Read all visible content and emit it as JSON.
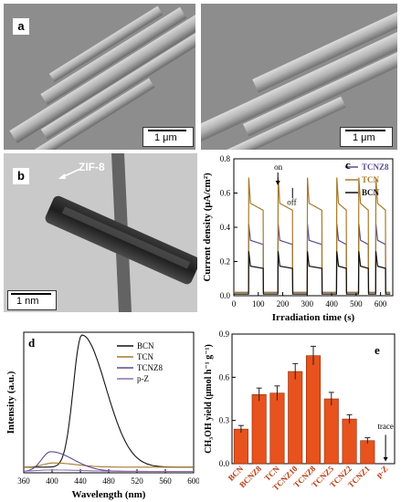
{
  "panels": {
    "a": {
      "letter": "a",
      "scale_left": "1 μm",
      "scale_right": "1 μm"
    },
    "b": {
      "letter": "b",
      "label": "ZIF-8",
      "scale": "1 nm"
    },
    "c": {
      "letter": "c",
      "annot_on": "on",
      "annot_off": "off"
    },
    "d": {
      "letter": "d"
    },
    "e": {
      "letter": "e",
      "annot_trace": "trace"
    }
  },
  "colors": {
    "BCN": "#111111",
    "TCN": "#a67a2a",
    "TCNZ8": "#5b4a92",
    "pZ": "#8e70b8",
    "bar": "#e8521d"
  },
  "chart_data": [
    {
      "id": "c",
      "type": "line",
      "xlabel": "Irradiation time (s)",
      "ylabel": "Current density (μA/cm²)",
      "xlim": [
        0,
        650
      ],
      "ylim": [
        0,
        0.8
      ],
      "xticks": [
        0,
        100,
        200,
        300,
        400,
        500,
        600
      ],
      "yticks": [
        0.0,
        0.2,
        0.4,
        0.6,
        0.8
      ],
      "ytick_labels": [
        "0.0",
        "0.2",
        "0.4",
        "0.6",
        "0.8"
      ],
      "legend_position": "top-right",
      "on_times": [
        60,
        180,
        300,
        420,
        510,
        580
      ],
      "off_times": [
        120,
        240,
        360,
        460,
        550,
        620
      ],
      "series": [
        {
          "name": "TCNZ8",
          "color_key": "TCNZ8",
          "peak": 0.42,
          "steady": 0.3,
          "dark": 0.02
        },
        {
          "name": "TCN",
          "color_key": "TCN",
          "peak": 0.69,
          "steady": 0.5,
          "dark": 0.02
        },
        {
          "name": "BCN",
          "color_key": "BCN",
          "peak": 0.26,
          "steady": 0.16,
          "dark": 0.01
        }
      ]
    },
    {
      "id": "d",
      "type": "line",
      "xlabel": "Wavelength (nm)",
      "ylabel": "Intensity (a.u.)",
      "xlim": [
        360,
        600
      ],
      "ylim": [
        0,
        1.0
      ],
      "xticks": [
        360,
        400,
        440,
        480,
        520,
        560,
        600
      ],
      "legend_position": "top-right",
      "series": [
        {
          "name": "BCN",
          "color_key": "BCN",
          "peak_x": 442,
          "peak_y": 0.98,
          "width_left": 17,
          "width_right": 48,
          "base": 0.04
        },
        {
          "name": "TCN",
          "color_key": "TCN",
          "peak_x": 402,
          "peak_y": 0.07,
          "width_left": 20,
          "width_right": 45,
          "base": 0.04
        },
        {
          "name": "TCNZ8",
          "color_key": "TCNZ8",
          "peak_x": 398,
          "peak_y": 0.15,
          "width_left": 18,
          "width_right": 45,
          "base": 0.01
        },
        {
          "name": "p-Z",
          "color_key": "pZ",
          "peak_x": 400,
          "peak_y": 0.02,
          "width_left": 30,
          "width_right": 60,
          "base": 0.01
        }
      ]
    },
    {
      "id": "e",
      "type": "bar",
      "ylabel": "CH₃OH yield (μmol h⁻¹ g⁻¹)",
      "ylim": [
        0,
        0.9
      ],
      "yticks": [
        0.0,
        0.3,
        0.6,
        0.9
      ],
      "ytick_labels": [
        "0.0",
        "0.3",
        "0.6",
        "0.9"
      ],
      "categories": [
        "BCN",
        "BCNZ8",
        "TCN",
        "TCNZ10",
        "TCNZ8",
        "TCNZ5",
        "TCNZ2",
        "TCNZ1",
        "p-Z"
      ],
      "values": [
        0.24,
        0.48,
        0.49,
        0.64,
        0.75,
        0.45,
        0.31,
        0.16,
        0.0
      ],
      "errors": [
        0.025,
        0.045,
        0.05,
        0.055,
        0.065,
        0.045,
        0.03,
        0.02,
        0.0
      ]
    }
  ]
}
